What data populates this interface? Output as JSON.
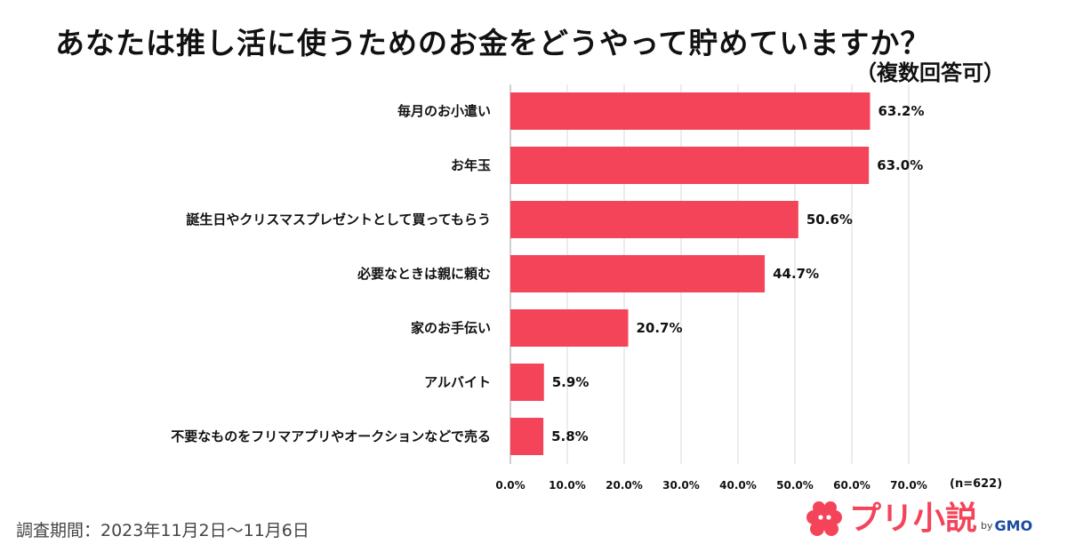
{
  "colors": {
    "bar": "#f4445a",
    "grid": "#d9d9d9",
    "axis": "#bfbfbf",
    "brand": "#f4445a",
    "gmo": "#1a4aa0"
  },
  "sample_size": "(n=622)",
  "footer": {
    "period": "調査期間：2023年11月2日〜11月6日"
  },
  "logo": {
    "name": "プリ小説",
    "by": "by",
    "company": "GMO",
    "icon": "cloud-burst-icon"
  },
  "chart_data": {
    "type": "bar",
    "orientation": "horizontal",
    "title": "あなたは推し活に使うためのお金をどうやって貯めていますか？",
    "subtitle": "（複数回答可）",
    "categories": [
      "毎月のお小遣い",
      "お年玉",
      "誕生日やクリスマスプレゼントとして買ってもらう",
      "必要なときは親に頼む",
      "家のお手伝い",
      "アルバイト",
      "不要なものをフリマアプリやオークションなどで売る"
    ],
    "values": [
      63.2,
      63.0,
      50.6,
      44.7,
      20.7,
      5.9,
      5.8
    ],
    "value_labels": [
      "63.2%",
      "63.0%",
      "50.6%",
      "44.7%",
      "20.7%",
      "5.9%",
      "5.8%"
    ],
    "xlim": [
      0,
      70
    ],
    "ticks": [
      0,
      10,
      20,
      30,
      40,
      50,
      60,
      70
    ],
    "tick_labels": [
      "0.0%",
      "10.0%",
      "20.0%",
      "30.0%",
      "40.0%",
      "50.0%",
      "60.0%",
      "70.0%"
    ],
    "xlabel": "",
    "ylabel": "",
    "grid": "vertical"
  }
}
